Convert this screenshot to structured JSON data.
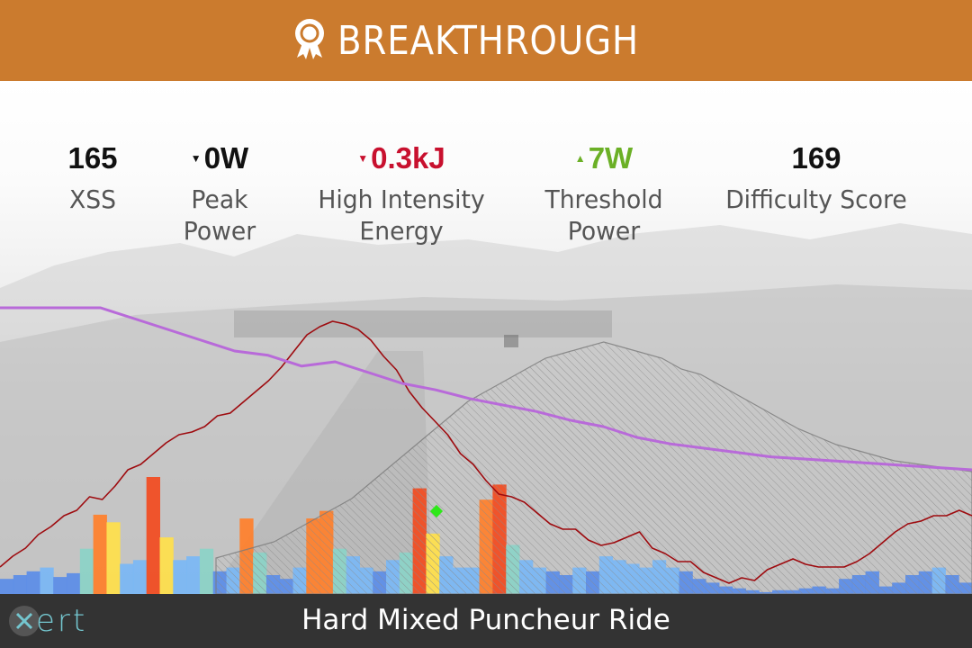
{
  "banner": {
    "title": "BREAKTHROUGH",
    "icon": "award-ribbon-icon",
    "background_color": "#CB7B2E"
  },
  "metrics": [
    {
      "value": "165",
      "label_lines": [
        "XSS"
      ],
      "color": "#111111",
      "trend": "none"
    },
    {
      "value": "0W",
      "label_lines": [
        "Peak",
        "Power"
      ],
      "color": "#111111",
      "trend": "down"
    },
    {
      "value": "0.3kJ",
      "label_lines": [
        "High Intensity",
        "Energy"
      ],
      "color": "#C8102E",
      "trend": "down"
    },
    {
      "value": "7W",
      "label_lines": [
        "Threshold",
        "Power"
      ],
      "color": "#6BB026",
      "trend": "up"
    },
    {
      "value": "169",
      "label_lines": [
        "Difficulty Score"
      ],
      "color": "#111111",
      "trend": "none"
    }
  ],
  "footer": {
    "logo_text": "ert",
    "logo_icon": "xert-x-logo-icon",
    "activity_title": "Hard Mixed Puncheur Ride",
    "background_color": "#333333"
  },
  "chart_data": {
    "type": "area",
    "title": "",
    "xlabel": "",
    "ylabel": "",
    "grid": false,
    "legend": "none",
    "series": [
      {
        "kind": "line",
        "color": "#9E0B0F",
        "y": [
          20,
          28,
          34,
          44,
          50,
          58,
          62,
          72,
          70,
          80,
          92,
          96,
          104,
          112,
          118,
          120,
          124,
          132,
          134,
          142,
          150,
          158,
          168,
          180,
          192,
          198,
          202,
          200,
          196,
          188,
          176,
          166,
          150,
          138,
          128,
          118,
          104,
          96,
          84,
          74,
          72,
          68,
          60,
          52,
          48,
          48,
          40,
          36,
          38,
          42,
          46,
          34,
          30,
          24,
          24,
          16,
          12,
          8,
          12,
          10,
          18,
          22,
          26,
          22,
          20,
          20,
          20,
          24,
          30,
          38,
          46,
          52,
          54,
          58,
          58,
          62,
          58
        ]
      },
      {
        "kind": "line",
        "color": "#B86AD9",
        "y": [
          85,
          85,
          85,
          85,
          80,
          75,
          70,
          65,
          63,
          58,
          60,
          55,
          50,
          47,
          43,
          40,
          37,
          33,
          30,
          25,
          22,
          20,
          18,
          16,
          15,
          14,
          13,
          12,
          11,
          10
        ]
      },
      {
        "kind": "area",
        "color": "#9B9B9B",
        "y": [
          0,
          2,
          4,
          6,
          10,
          14,
          18,
          22,
          28,
          34,
          40,
          46,
          52,
          58,
          62,
          66,
          70,
          74,
          76,
          78,
          80,
          78,
          76,
          74,
          70,
          68,
          64,
          60,
          56,
          52,
          48,
          45,
          42,
          40,
          38,
          36,
          35,
          34,
          33,
          32
        ]
      },
      {
        "kind": "bars",
        "palette": [
          "#5B8DE8",
          "#7AB7F5",
          "#8BD3C7",
          "#FFE04A",
          "#FF7F2A",
          "#F24A1E"
        ],
        "y": [
          8,
          10,
          12,
          14,
          9,
          11,
          24,
          42,
          38,
          16,
          18,
          62,
          30,
          18,
          20,
          24,
          12,
          14,
          40,
          22,
          10,
          8,
          14,
          40,
          44,
          24,
          20,
          14,
          12,
          18,
          22,
          56,
          32,
          20,
          14,
          14,
          50,
          58,
          26,
          18,
          14,
          12,
          10,
          14,
          12,
          20,
          18,
          16,
          14,
          18,
          14,
          12,
          8,
          6,
          4,
          3,
          2,
          1,
          2,
          2,
          3,
          4,
          3,
          8,
          10,
          12,
          4,
          6,
          10,
          12,
          14,
          10,
          6
        ]
      }
    ],
    "markers": [
      {
        "name": "breakthrough-point",
        "color": "#2EE81A",
        "label": ""
      }
    ]
  }
}
